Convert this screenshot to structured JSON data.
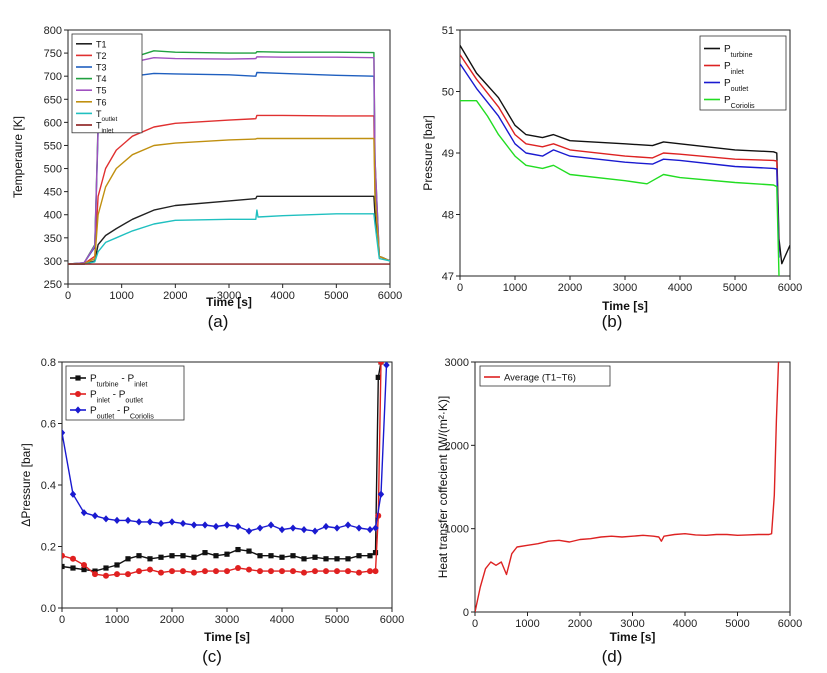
{
  "chart_data": [
    {
      "id": "a",
      "type": "line",
      "caption": "(a)",
      "xlabel": "Time [s]",
      "ylabel": "Temperaure [K]",
      "xlim": [
        0,
        6000
      ],
      "ylim": [
        250,
        800
      ],
      "xticks": [
        0,
        1000,
        2000,
        3000,
        4000,
        5000,
        6000
      ],
      "xtick_labels": [
        "0",
        "1000",
        "2000",
        "3000",
        "4000",
        "5000",
        "6000"
      ],
      "yticks": [
        250,
        300,
        350,
        400,
        450,
        500,
        550,
        600,
        650,
        700,
        750,
        800
      ],
      "legend_position": "top-left",
      "series": [
        {
          "name": "T1",
          "color": "#222222",
          "x": [
            0,
            300,
            500,
            560,
            700,
            900,
            1200,
            1600,
            2000,
            3000,
            3500,
            3520,
            4000,
            5000,
            5700,
            5720,
            5800,
            6000
          ],
          "y": [
            293,
            293,
            300,
            335,
            355,
            370,
            390,
            410,
            420,
            430,
            435,
            440,
            440,
            440,
            440,
            400,
            310,
            300
          ]
        },
        {
          "name": "T2",
          "color": "#e03030",
          "x": [
            0,
            300,
            500,
            560,
            700,
            900,
            1200,
            1600,
            2000,
            3000,
            3500,
            3520,
            4000,
            5000,
            5700,
            5720,
            5800,
            6000
          ],
          "y": [
            293,
            294,
            310,
            440,
            500,
            540,
            570,
            590,
            598,
            605,
            608,
            615,
            615,
            614,
            614,
            450,
            310,
            300
          ]
        },
        {
          "name": "T3",
          "color": "#1f5fbf",
          "x": [
            0,
            300,
            500,
            560,
            700,
            900,
            1200,
            1600,
            2000,
            3000,
            3500,
            3520,
            4000,
            5000,
            5700,
            5720,
            5800,
            6000
          ],
          "y": [
            293,
            296,
            330,
            580,
            640,
            680,
            700,
            706,
            705,
            703,
            700,
            708,
            706,
            702,
            700,
            500,
            310,
            300
          ]
        },
        {
          "name": "T4",
          "color": "#20a040",
          "x": [
            0,
            300,
            500,
            560,
            700,
            900,
            1200,
            1600,
            2000,
            3000,
            3500,
            3520,
            4000,
            5000,
            5700,
            5720,
            5800,
            6000
          ],
          "y": [
            293,
            296,
            335,
            600,
            660,
            710,
            740,
            755,
            752,
            750,
            750,
            753,
            752,
            752,
            751,
            520,
            310,
            300
          ]
        },
        {
          "name": "T5",
          "color": "#a050c0",
          "x": [
            0,
            300,
            500,
            560,
            700,
            900,
            1200,
            1600,
            2000,
            3000,
            3500,
            3520,
            4000,
            5000,
            5700,
            5720,
            5800,
            6000
          ],
          "y": [
            293,
            296,
            333,
            590,
            650,
            700,
            730,
            740,
            738,
            737,
            738,
            742,
            741,
            741,
            740,
            520,
            310,
            300
          ]
        },
        {
          "name": "T6",
          "color": "#c09010",
          "x": [
            0,
            300,
            500,
            560,
            700,
            900,
            1200,
            1600,
            2000,
            3000,
            3500,
            3520,
            4000,
            5000,
            5700,
            5720,
            5800,
            6000
          ],
          "y": [
            293,
            294,
            305,
            400,
            460,
            500,
            530,
            550,
            555,
            562,
            564,
            565,
            565,
            565,
            565,
            440,
            310,
            300
          ]
        },
        {
          "name": "T_outlet",
          "label_main": "T",
          "label_sub": "outlet",
          "color": "#20c0c0",
          "x": [
            0,
            300,
            500,
            560,
            700,
            900,
            1200,
            1600,
            2000,
            3000,
            3500,
            3520,
            3540,
            4000,
            5000,
            5700,
            5720,
            5800,
            6000
          ],
          "y": [
            293,
            293,
            298,
            320,
            340,
            350,
            365,
            380,
            388,
            390,
            390,
            410,
            395,
            398,
            402,
            402,
            380,
            305,
            300
          ]
        },
        {
          "name": "T_inlet",
          "label_main": "T",
          "label_sub": "inlet",
          "color": "#8b1a1a",
          "x": [
            0,
            6000
          ],
          "y": [
            293,
            293
          ]
        }
      ]
    },
    {
      "id": "b",
      "type": "line",
      "caption": "(b)",
      "xlabel": "Time [s]",
      "ylabel": "Pressure [bar]",
      "xlim": [
        0,
        6000
      ],
      "ylim": [
        47,
        51
      ],
      "xticks": [
        0,
        1000,
        2000,
        3000,
        4000,
        5000,
        6000
      ],
      "xtick_labels": [
        "0",
        "1000",
        "2000",
        "3000",
        "4000",
        "5000",
        "6000"
      ],
      "yticks": [
        47,
        48,
        49,
        50,
        51
      ],
      "legend_position": "top-right",
      "series": [
        {
          "name": "P_turbine",
          "label_main": "P",
          "label_sub": "turbine",
          "color": "#111111",
          "x": [
            0,
            300,
            700,
            1000,
            1200,
            1500,
            1700,
            2000,
            3000,
            3500,
            3700,
            4000,
            5000,
            5700,
            5760,
            5800,
            5850,
            5900,
            6000
          ],
          "y": [
            50.75,
            50.3,
            49.9,
            49.45,
            49.3,
            49.25,
            49.3,
            49.2,
            49.15,
            49.12,
            49.18,
            49.15,
            49.05,
            49.02,
            49.0,
            47.6,
            47.2,
            47.3,
            47.5
          ]
        },
        {
          "name": "P_inlet",
          "label_main": "P",
          "label_sub": "inlet",
          "color": "#dd2222",
          "x": [
            0,
            300,
            700,
            1000,
            1200,
            1500,
            1700,
            2000,
            3000,
            3500,
            3700,
            4000,
            5000,
            5700,
            5760,
            5800
          ],
          "y": [
            50.6,
            50.2,
            49.75,
            49.3,
            49.15,
            49.1,
            49.15,
            49.05,
            48.95,
            48.92,
            49.0,
            48.98,
            48.9,
            48.88,
            48.87,
            47.4
          ]
        },
        {
          "name": "P_outlet",
          "label_main": "P",
          "label_sub": "outlet",
          "color": "#1a1ad0",
          "x": [
            0,
            300,
            700,
            1000,
            1200,
            1500,
            1700,
            2000,
            3000,
            3500,
            3700,
            4000,
            5000,
            5700,
            5760,
            5800
          ],
          "y": [
            50.45,
            50.05,
            49.6,
            49.15,
            49.0,
            48.95,
            49.05,
            48.95,
            48.85,
            48.82,
            48.9,
            48.88,
            48.78,
            48.75,
            48.74,
            47.3
          ]
        },
        {
          "name": "P_Coriolis",
          "label_main": "P",
          "label_sub": "Coriolis",
          "color": "#22dd22",
          "x": [
            0,
            300,
            500,
            700,
            1000,
            1200,
            1500,
            1700,
            2000,
            3000,
            3400,
            3500,
            3700,
            4000,
            5000,
            5700,
            5760,
            5800
          ],
          "y": [
            49.85,
            49.85,
            49.6,
            49.3,
            48.95,
            48.8,
            48.75,
            48.8,
            48.65,
            48.55,
            48.5,
            48.55,
            48.65,
            48.6,
            48.52,
            48.48,
            48.45,
            47.0
          ]
        }
      ]
    },
    {
      "id": "c",
      "type": "line",
      "caption": "(c)",
      "xlabel": "Time [s]",
      "ylabel": "ΔPressure [bar]",
      "xlim": [
        0,
        6000
      ],
      "ylim": [
        0,
        0.8
      ],
      "xticks": [
        0,
        1000,
        2000,
        3000,
        4000,
        5000,
        6000
      ],
      "xtick_labels": [
        "0",
        "1000",
        "2000",
        "3000",
        "4000",
        "5000",
        "6000"
      ],
      "yticks": [
        0.0,
        0.2,
        0.4,
        0.6,
        0.8
      ],
      "ytick_labels": [
        "0.0",
        "0.2",
        "0.4",
        "0.6",
        "0.8"
      ],
      "legend_position": "top-left",
      "series": [
        {
          "name": "P_turbine - P_inlet",
          "label_parts": [
            [
              "P",
              ""
            ],
            [
              "turbine",
              "sub"
            ],
            [
              " - P",
              ""
            ],
            [
              "inlet",
              "sub"
            ]
          ],
          "color": "#111111",
          "marker": "square",
          "x": [
            0,
            200,
            400,
            600,
            800,
            1000,
            1200,
            1400,
            1600,
            1800,
            2000,
            2200,
            2400,
            2600,
            2800,
            3000,
            3200,
            3400,
            3600,
            3800,
            4000,
            4200,
            4400,
            4600,
            4800,
            5000,
            5200,
            5400,
            5600,
            5700,
            5750,
            5800
          ],
          "y": [
            0.135,
            0.13,
            0.125,
            0.12,
            0.13,
            0.14,
            0.16,
            0.17,
            0.16,
            0.165,
            0.17,
            0.17,
            0.165,
            0.18,
            0.17,
            0.175,
            0.19,
            0.185,
            0.17,
            0.17,
            0.165,
            0.17,
            0.16,
            0.165,
            0.16,
            0.16,
            0.16,
            0.17,
            0.17,
            0.18,
            0.75,
            0.8
          ]
        },
        {
          "name": "P_inlet - P_outlet",
          "label_parts": [
            [
              "P",
              ""
            ],
            [
              "inlet",
              "sub"
            ],
            [
              " - P",
              ""
            ],
            [
              "outlet",
              "sub"
            ]
          ],
          "color": "#e02020",
          "marker": "circle",
          "x": [
            0,
            200,
            400,
            600,
            800,
            1000,
            1200,
            1400,
            1600,
            1800,
            2000,
            2200,
            2400,
            2600,
            2800,
            3000,
            3200,
            3400,
            3600,
            3800,
            4000,
            4200,
            4400,
            4600,
            4800,
            5000,
            5200,
            5400,
            5600,
            5700,
            5750,
            5800
          ],
          "y": [
            0.17,
            0.16,
            0.14,
            0.11,
            0.105,
            0.11,
            0.11,
            0.12,
            0.125,
            0.115,
            0.12,
            0.12,
            0.115,
            0.12,
            0.12,
            0.12,
            0.13,
            0.125,
            0.12,
            0.12,
            0.12,
            0.12,
            0.115,
            0.12,
            0.12,
            0.12,
            0.12,
            0.115,
            0.12,
            0.12,
            0.3,
            0.8
          ]
        },
        {
          "name": "P_outlet - P_Coriolis",
          "label_parts": [
            [
              "P",
              ""
            ],
            [
              "outlet",
              "sub"
            ],
            [
              " - P",
              ""
            ],
            [
              "Coriolis",
              "sub"
            ]
          ],
          "color": "#1a1ad0",
          "marker": "diamond",
          "x": [
            0,
            200,
            400,
            600,
            800,
            1000,
            1200,
            1400,
            1600,
            1800,
            2000,
            2200,
            2400,
            2600,
            2800,
            3000,
            3200,
            3400,
            3600,
            3800,
            4000,
            4200,
            4400,
            4600,
            4800,
            5000,
            5200,
            5400,
            5600,
            5700,
            5800,
            5900
          ],
          "y": [
            0.57,
            0.37,
            0.31,
            0.3,
            0.29,
            0.285,
            0.285,
            0.28,
            0.28,
            0.275,
            0.28,
            0.275,
            0.27,
            0.27,
            0.265,
            0.27,
            0.265,
            0.25,
            0.26,
            0.27,
            0.255,
            0.26,
            0.255,
            0.25,
            0.265,
            0.26,
            0.27,
            0.26,
            0.255,
            0.26,
            0.37,
            0.79
          ]
        }
      ]
    },
    {
      "id": "d",
      "type": "line",
      "caption": "(d)",
      "xlabel": "Time [s]",
      "ylabel": "Heat transfer coffecient [W/(m²·K)]",
      "xlim": [
        0,
        6000
      ],
      "ylim": [
        0,
        3000
      ],
      "xticks": [
        0,
        1000,
        2000,
        3000,
        4000,
        5000,
        6000
      ],
      "xtick_labels": [
        "0",
        "1000",
        "2000",
        "3000",
        "4000",
        "5000",
        "6000"
      ],
      "yticks": [
        0,
        1000,
        2000,
        3000
      ],
      "legend_position": "top-left",
      "series": [
        {
          "name": "Average (T1~T6)",
          "color": "#dd2222",
          "x": [
            0,
            100,
            200,
            300,
            400,
            500,
            600,
            700,
            800,
            1000,
            1200,
            1400,
            1600,
            1800,
            2000,
            2200,
            2400,
            2600,
            2800,
            3000,
            3200,
            3400,
            3500,
            3550,
            3600,
            3800,
            4000,
            4200,
            4400,
            4600,
            4800,
            5000,
            5200,
            5400,
            5600,
            5650,
            5700,
            5740,
            5780
          ],
          "y": [
            0,
            300,
            520,
            600,
            560,
            600,
            450,
            700,
            780,
            800,
            820,
            850,
            860,
            840,
            870,
            880,
            900,
            910,
            900,
            910,
            920,
            910,
            900,
            850,
            910,
            930,
            940,
            925,
            920,
            930,
            930,
            920,
            925,
            930,
            930,
            940,
            1400,
            2300,
            3000
          ]
        }
      ]
    }
  ]
}
